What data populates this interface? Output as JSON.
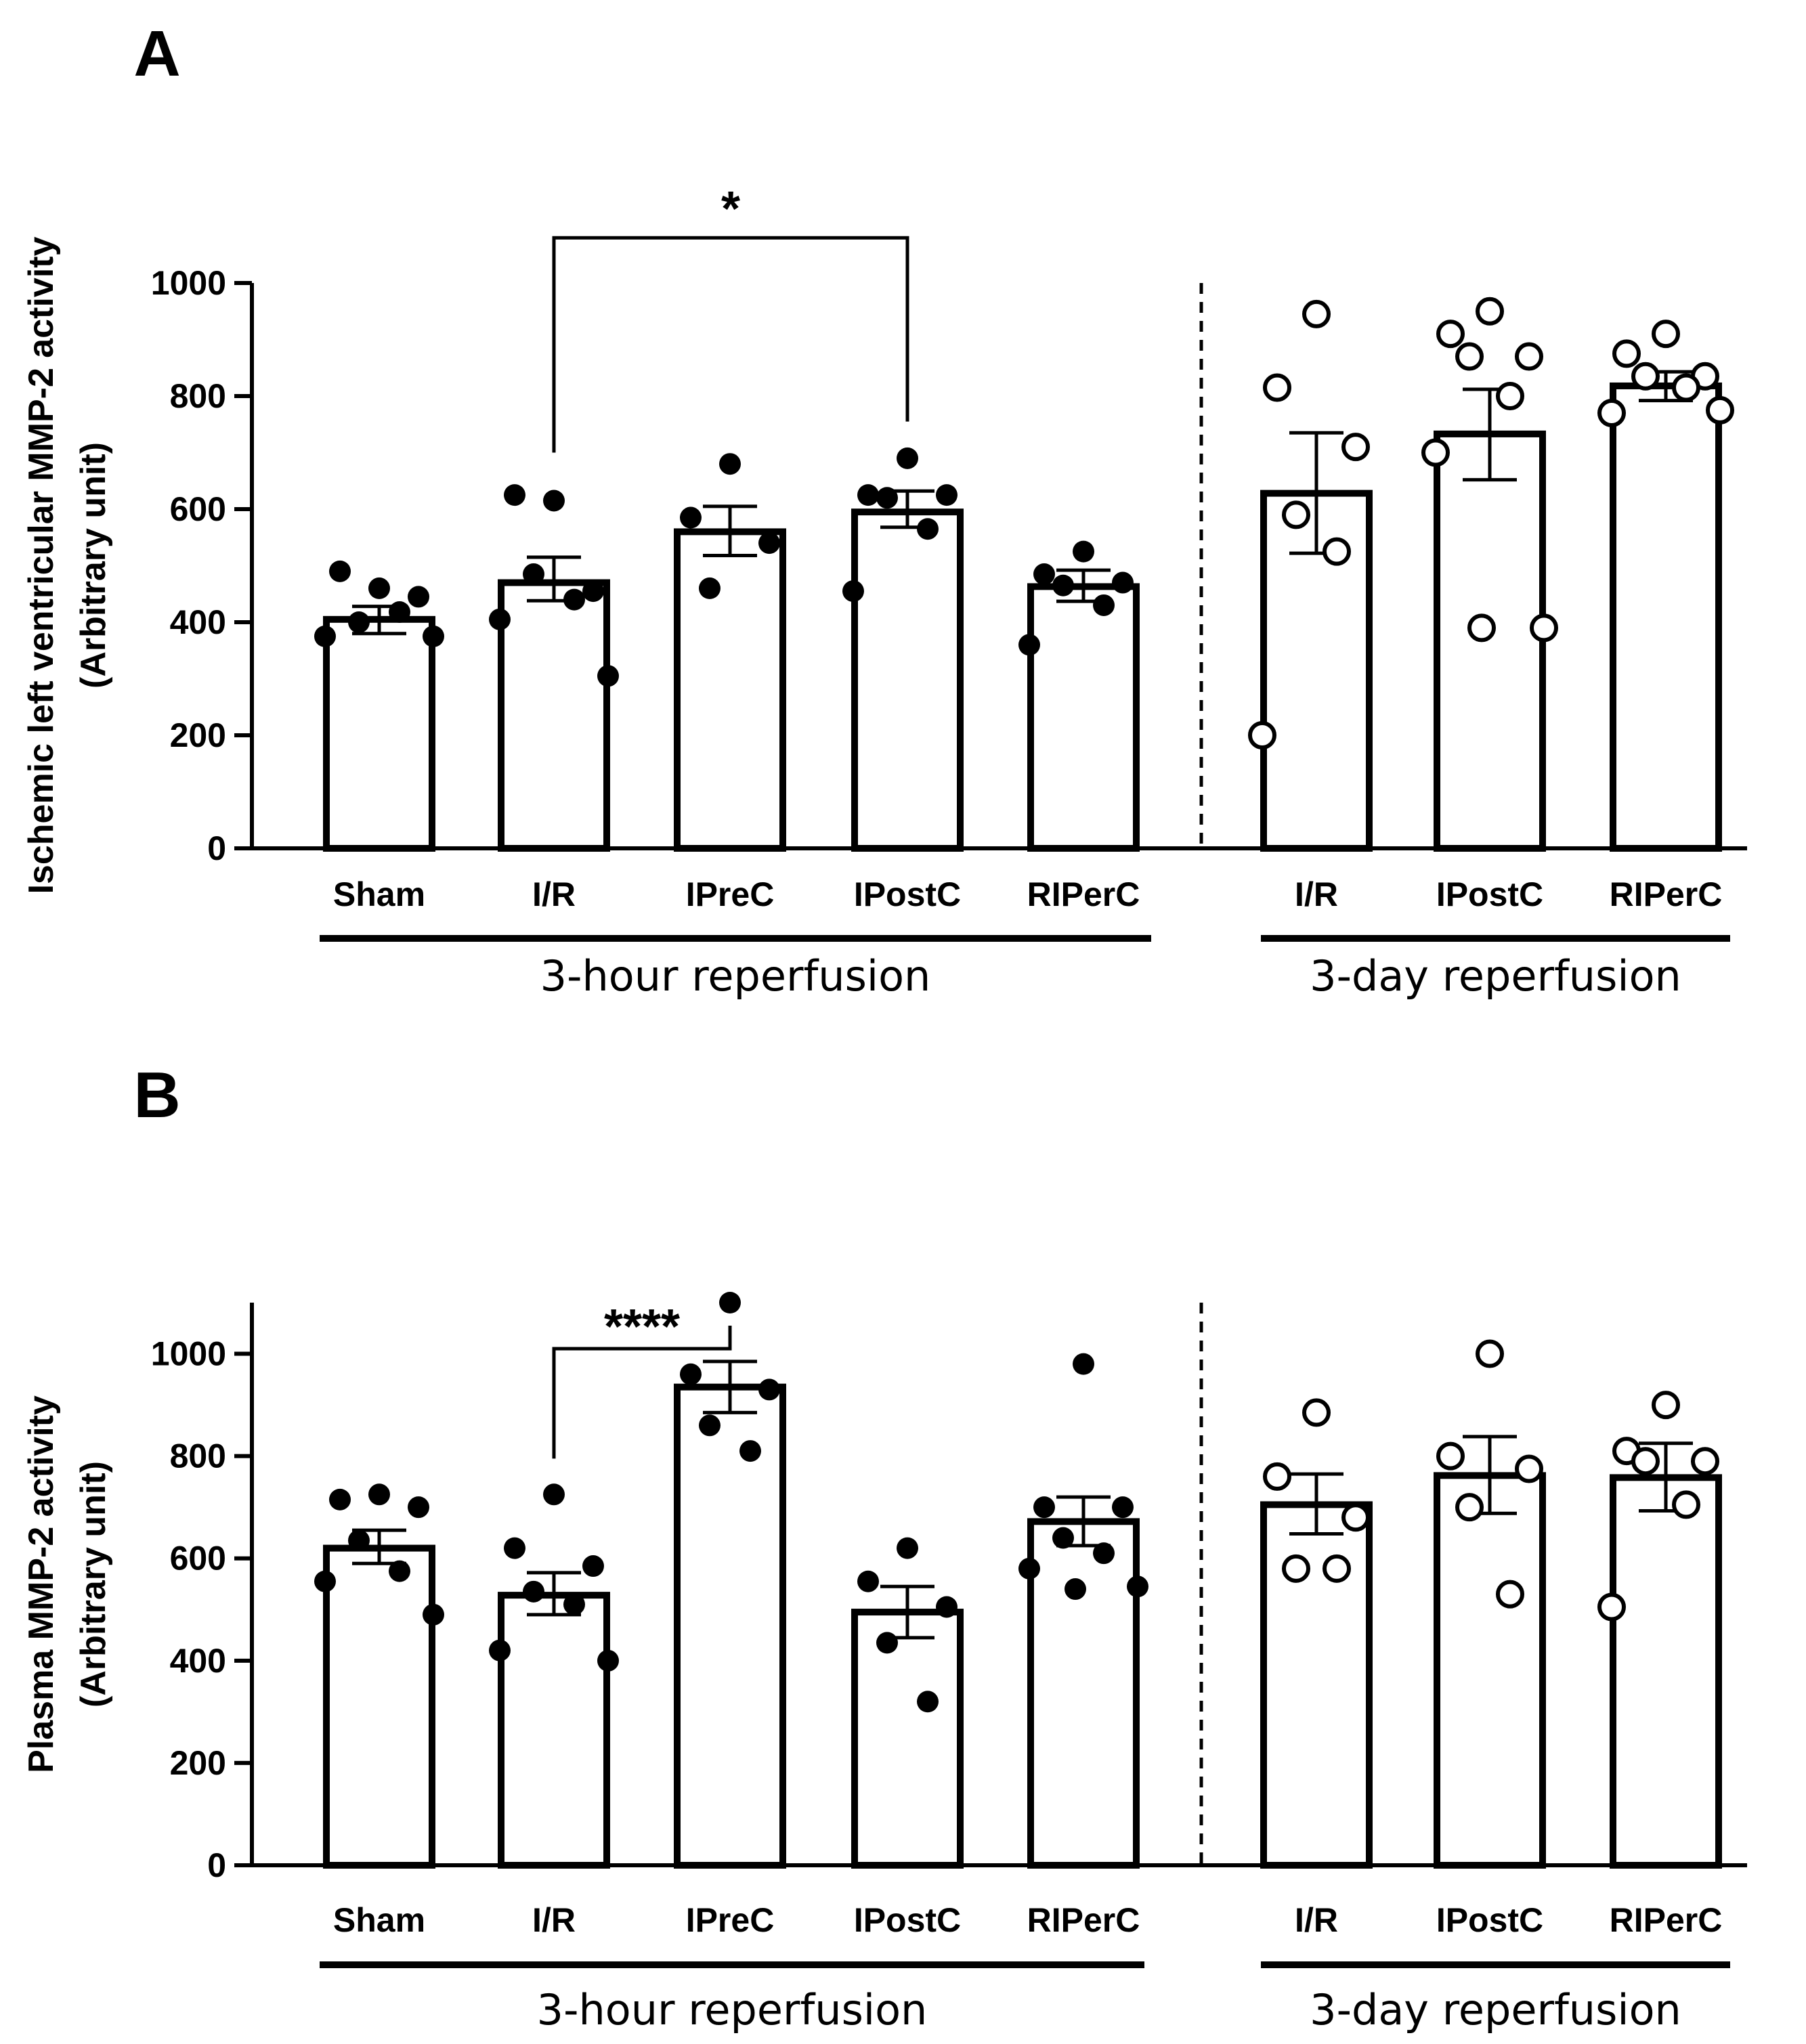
{
  "chart_data": [
    {
      "type": "bar",
      "panel_label": "A",
      "ylabel_line1": "Ischemic left ventricular MMP-2 activity",
      "ylabel_line2": "(Arbitrary unit)",
      "ylim": [
        0,
        1000
      ],
      "yticks": [
        0,
        200,
        400,
        600,
        800,
        1000
      ],
      "groups": [
        {
          "name": "3-hour reperfusion",
          "marker": "filled",
          "categories": [
            "Sham",
            "I/R",
            "IPreC",
            "IPostC",
            "RIPerC"
          ]
        },
        {
          "name": "3-day reperfusion",
          "marker": "open",
          "categories": [
            "I/R",
            "IPostC",
            "RIPerC"
          ]
        }
      ],
      "bars": [
        {
          "label": "Sham",
          "group": 0,
          "mean": 405,
          "sem_low": 380,
          "sem_high": 428,
          "points": [
            460,
            490,
            445,
            400,
            418,
            375,
            375
          ]
        },
        {
          "label": "I/R",
          "group": 0,
          "mean": 470,
          "sem_low": 438,
          "sem_high": 515,
          "points": [
            615,
            625,
            455,
            485,
            440,
            405,
            305
          ]
        },
        {
          "label": "IPreC",
          "group": 0,
          "mean": 560,
          "sem_low": 518,
          "sem_high": 605,
          "points": [
            680,
            585,
            540,
            460
          ]
        },
        {
          "label": "IPostC",
          "group": 0,
          "mean": 595,
          "sem_low": 568,
          "sem_high": 632,
          "points": [
            690,
            625,
            625,
            620,
            565,
            455
          ]
        },
        {
          "label": "RIPerC",
          "group": 0,
          "mean": 463,
          "sem_low": 437,
          "sem_high": 492,
          "points": [
            525,
            485,
            470,
            465,
            430,
            360
          ]
        },
        {
          "label": "I/R",
          "group": 1,
          "mean": 628,
          "sem_low": 522,
          "sem_high": 735,
          "points": [
            945,
            815,
            710,
            590,
            525,
            200
          ]
        },
        {
          "label": "IPostC",
          "group": 1,
          "mean": 733,
          "sem_low": 652,
          "sem_high": 812,
          "points": [
            950,
            910,
            870,
            870,
            800,
            700,
            390,
            390
          ]
        },
        {
          "label": "RIPerC",
          "group": 1,
          "mean": 818,
          "sem_low": 792,
          "sem_high": 843,
          "points": [
            910,
            875,
            835,
            835,
            815,
            770,
            775
          ]
        }
      ],
      "significance": {
        "from": "I/R",
        "to": "IPostC",
        "text": "*",
        "level": 1080
      }
    },
    {
      "type": "bar",
      "panel_label": "B",
      "ylabel_line1": "Plasma  MMP-2 activity",
      "ylabel_line2": "(Arbitrary unit)",
      "ylim": [
        0,
        1100
      ],
      "yticks": [
        0,
        200,
        400,
        600,
        800,
        1000
      ],
      "groups": [
        {
          "name": "3-hour reperfusion",
          "marker": "filled",
          "categories": [
            "Sham",
            "I/R",
            "IPreC",
            "IPostC",
            "RIPerC"
          ]
        },
        {
          "name": "3-day reperfusion",
          "marker": "open",
          "categories": [
            "I/R",
            "IPostC",
            "RIPerC"
          ]
        }
      ],
      "bars": [
        {
          "label": "Sham",
          "group": 0,
          "mean": 620,
          "sem_low": 590,
          "sem_high": 655,
          "points": [
            725,
            715,
            700,
            635,
            575,
            555,
            490
          ]
        },
        {
          "label": "I/R",
          "group": 1,
          "mean": 0,
          "sem_low": 0,
          "sem_high": 0,
          "points": [],
          "skip": true
        },
        {
          "label": "I/R",
          "group": 0,
          "mean": 528,
          "sem_low": 490,
          "sem_high": 572,
          "points": [
            725,
            620,
            585,
            535,
            510,
            420,
            400
          ]
        },
        {
          "label": "IPreC",
          "group": 0,
          "mean": 935,
          "sem_low": 885,
          "sem_high": 985,
          "points": [
            1100,
            960,
            930,
            860,
            810
          ]
        },
        {
          "label": "IPostC",
          "group": 0,
          "mean": 495,
          "sem_low": 445,
          "sem_high": 545,
          "points": [
            620,
            555,
            505,
            435,
            320
          ]
        },
        {
          "label": "RIPerC",
          "group": 0,
          "mean": 672,
          "sem_low": 625,
          "sem_high": 720,
          "points": [
            980,
            700,
            700,
            640,
            610,
            580,
            545,
            540
          ]
        },
        {
          "label": "I/R",
          "group": 1,
          "mean": 705,
          "sem_low": 648,
          "sem_high": 765,
          "points": [
            885,
            760,
            680,
            580,
            580
          ]
        },
        {
          "label": "IPostC",
          "group": 1,
          "mean": 762,
          "sem_low": 688,
          "sem_high": 838,
          "points": [
            1000,
            800,
            775,
            700,
            530
          ]
        },
        {
          "label": "RIPerC",
          "group": 1,
          "mean": 758,
          "sem_low": 693,
          "sem_high": 825,
          "points": [
            900,
            810,
            790,
            790,
            705,
            505
          ]
        }
      ],
      "significance": {
        "from": "I/R",
        "to": "IPreC",
        "text": "****",
        "level": 1010
      }
    }
  ]
}
